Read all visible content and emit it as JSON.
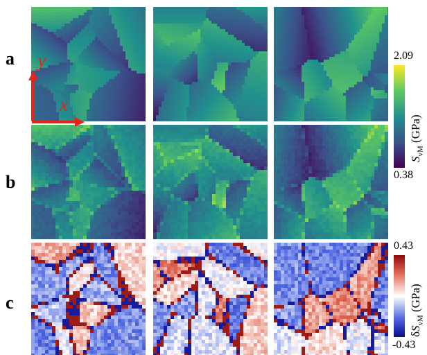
{
  "rows": [
    {
      "label": "a"
    },
    {
      "label": "b"
    },
    {
      "label": "c"
    }
  ],
  "axes": {
    "x_label": "x",
    "y_label": "y",
    "color": "#e8231a"
  },
  "colorbar_top": {
    "max": "2.09",
    "min": "0.38",
    "title_symbol": "S",
    "title_sub": "vM",
    "title_unit": "(GPa)",
    "colormap": "viridis",
    "colors": [
      "#440154",
      "#3b528b",
      "#21918c",
      "#5ec962",
      "#fde725"
    ]
  },
  "colorbar_bottom": {
    "max": "0.43",
    "min": "-0.43",
    "title_prefix": "δ",
    "title_symbol": "S",
    "title_sub": "vM",
    "title_unit": "(GPa)",
    "colormap": "bwr",
    "colors": [
      "#0a0a8c",
      "#4d66e0",
      "#ffffff",
      "#e06650",
      "#8c0a0a"
    ]
  }
}
